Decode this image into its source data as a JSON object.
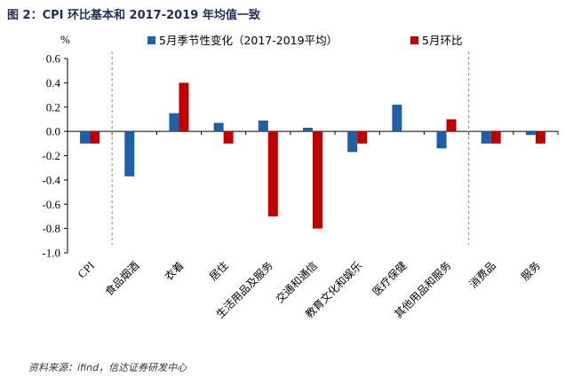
{
  "figure": {
    "title": "图 2：CPI 环比基本和 2017-2019 年均值一致",
    "source": "资料来源：ifind，信达证券研发中心"
  },
  "chart_data": {
    "type": "bar",
    "title": "",
    "ylabel": "%",
    "xlabel": "",
    "ylim": [
      -1.0,
      0.6
    ],
    "yticks": [
      "0.6",
      "0.4",
      "0.2",
      "0.0",
      "-0.2",
      "-0.4",
      "-0.6",
      "-0.8",
      "-1.0"
    ],
    "ytick_values": [
      0.6,
      0.4,
      0.2,
      0.0,
      -0.2,
      -0.4,
      -0.6,
      -0.8,
      -1.0
    ],
    "legend_position": "top",
    "grid": false,
    "categories": [
      "CPI",
      "食品烟酒",
      "衣着",
      "居住",
      "生活用品及服务",
      "交通和通信",
      "教育文化和娱乐",
      "医疗保健",
      "其他用品和服务",
      "消费品",
      "服务"
    ],
    "series": [
      {
        "name": "5月季节性变化（2017-2019平均）",
        "color": "#1f5fa6",
        "values": [
          -0.1,
          -0.37,
          0.15,
          0.07,
          0.09,
          0.03,
          -0.17,
          0.22,
          -0.14,
          -0.1,
          -0.03
        ]
      },
      {
        "name": "5月环比",
        "color": "#c00000",
        "values": [
          -0.1,
          0.0,
          0.4,
          -0.1,
          -0.7,
          -0.8,
          -0.1,
          0.0,
          0.1,
          -0.1,
          -0.1
        ]
      }
    ],
    "separators_after": [
      0,
      8
    ]
  }
}
